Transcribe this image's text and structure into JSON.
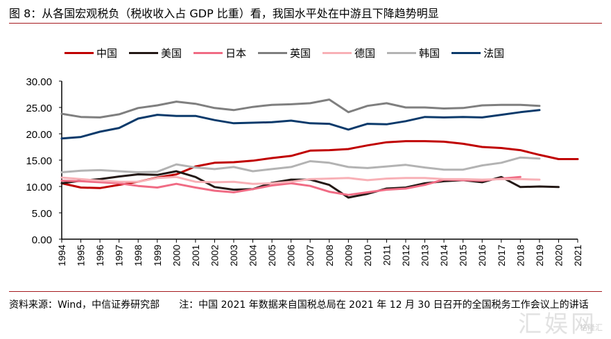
{
  "header": {
    "title": "图 8：从各国宏观税负（税收收入占 GDP 比重）看，我国水平处在中游且下降趋势明显"
  },
  "footer": {
    "source": "资料来源：Wind，中信证券研究部",
    "note": "注：中国 2021 年数据来自国税总局在 2021 年 12 月 30 日召开的全国税务工作会议上的讲话"
  },
  "watermark": {
    "text": "汇娱网",
    "sub": "格隆汇"
  },
  "chart_data": {
    "type": "line",
    "title": "从各国宏观税负（税收收入占 GDP 比重）看，我国水平处在中游且下降趋势明显",
    "xlabel": "",
    "ylabel": "",
    "ylim": [
      0,
      30
    ],
    "yticks": [
      "0.00",
      "5.00",
      "10.00",
      "15.00",
      "20.00",
      "25.00",
      "30.00"
    ],
    "ytick_values": [
      0,
      5,
      10,
      15,
      20,
      25,
      30
    ],
    "x": [
      "1994",
      "1995",
      "1996",
      "1997",
      "1998",
      "1999",
      "2000",
      "2001",
      "2002",
      "2003",
      "2004",
      "2005",
      "2006",
      "2007",
      "2008",
      "2009",
      "2010",
      "2011",
      "2012",
      "2013",
      "2014",
      "2015",
      "2016",
      "2017",
      "2018",
      "2019",
      "2020",
      "2021"
    ],
    "grid": false,
    "legend_position": "top",
    "series": [
      {
        "name": "中国",
        "color": "#c00000",
        "values": [
          10.6,
          9.8,
          9.7,
          10.3,
          10.9,
          11.7,
          12.3,
          13.8,
          14.5,
          14.6,
          14.9,
          15.4,
          15.8,
          16.8,
          16.9,
          17.1,
          17.8,
          18.4,
          18.6,
          18.6,
          18.5,
          18.1,
          17.5,
          17.3,
          16.9,
          16.0,
          15.2,
          15.2
        ]
      },
      {
        "name": "美国",
        "color": "#231815",
        "values": [
          10.6,
          11.1,
          11.4,
          11.9,
          12.3,
          12.2,
          12.9,
          11.8,
          9.9,
          9.4,
          9.5,
          10.7,
          11.3,
          11.3,
          10.3,
          7.9,
          8.6,
          9.6,
          9.8,
          10.6,
          11.0,
          11.2,
          10.8,
          11.8,
          9.9,
          10.0,
          9.9,
          null
        ]
      },
      {
        "name": "日本",
        "color": "#f06b84",
        "values": [
          11.1,
          11.0,
          10.8,
          10.6,
          10.1,
          9.8,
          10.5,
          9.8,
          9.2,
          8.9,
          9.5,
          10.2,
          10.6,
          10.1,
          9.0,
          8.4,
          8.9,
          9.4,
          9.6,
          10.3,
          11.3,
          11.2,
          11.1,
          11.5,
          11.8,
          null,
          null,
          null
        ]
      },
      {
        "name": "英国",
        "color": "#7f7f7f",
        "values": [
          23.8,
          23.2,
          23.1,
          23.7,
          24.9,
          25.4,
          26.1,
          25.7,
          24.9,
          24.5,
          25.1,
          25.5,
          25.6,
          25.8,
          26.5,
          24.1,
          25.3,
          25.8,
          25.0,
          25.0,
          24.8,
          24.9,
          25.4,
          25.5,
          25.5,
          25.3,
          null,
          null
        ]
      },
      {
        "name": "德国",
        "color": "#f8b0b6",
        "values": [
          11.7,
          11.4,
          11.1,
          10.9,
          10.9,
          11.6,
          11.8,
          10.9,
          10.8,
          10.9,
          10.5,
          10.6,
          10.9,
          11.4,
          11.5,
          11.6,
          11.2,
          11.5,
          11.6,
          11.6,
          11.4,
          11.4,
          11.3,
          11.4,
          11.4,
          11.3,
          null,
          null
        ]
      },
      {
        "name": "韩国",
        "color": "#b3b3b3",
        "values": [
          12.7,
          13.0,
          13.1,
          12.9,
          12.7,
          12.8,
          14.2,
          13.6,
          13.3,
          13.7,
          12.9,
          13.3,
          13.7,
          14.8,
          14.5,
          13.7,
          13.5,
          13.8,
          14.1,
          13.6,
          13.2,
          13.2,
          14.0,
          14.5,
          15.5,
          15.3,
          null,
          null
        ]
      },
      {
        "name": "法国",
        "color": "#0b3a6b",
        "values": [
          19.1,
          19.4,
          20.4,
          21.1,
          22.9,
          23.6,
          23.4,
          23.4,
          22.6,
          22.0,
          22.1,
          22.2,
          22.5,
          22.0,
          21.9,
          20.8,
          21.9,
          21.8,
          22.4,
          23.2,
          23.1,
          23.2,
          23.1,
          23.6,
          24.1,
          24.5,
          null,
          null
        ]
      }
    ]
  }
}
